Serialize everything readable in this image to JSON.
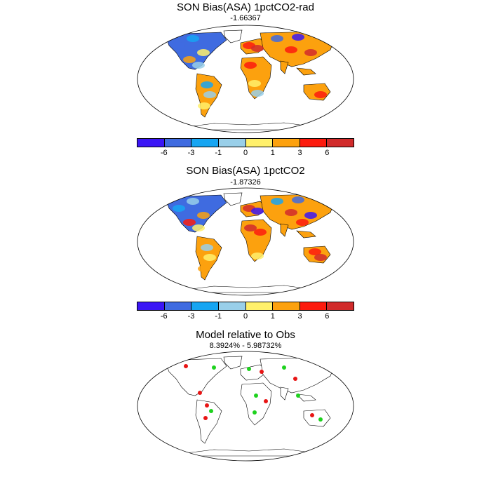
{
  "panels": [
    {
      "title": "SON Bias(ASA) 1pctCO2-rad",
      "subtitle": "-1.66367",
      "palette": "bias",
      "has_colorbar": true
    },
    {
      "title": "SON Bias(ASA) 1pctCO2",
      "subtitle": "-1.87326",
      "palette": "bias",
      "has_colorbar": true
    },
    {
      "title": "Model relative to Obs",
      "subtitle": "8.3924% - 5.98732%",
      "palette": "compare",
      "has_colorbar": false
    }
  ],
  "colorbar": {
    "colors": [
      "#3b16f5",
      "#3f6be0",
      "#16a5f2",
      "#99cfe9",
      "#fff06b",
      "#fca10e",
      "#fc1b0e",
      "#d12b2b"
    ],
    "tick_labels": [
      "-6",
      "-3",
      "-1",
      "0",
      "1",
      "3",
      "6"
    ]
  },
  "compare_colors": {
    "model_better": "#1ed21e",
    "model_worse": "#e81414"
  }
}
